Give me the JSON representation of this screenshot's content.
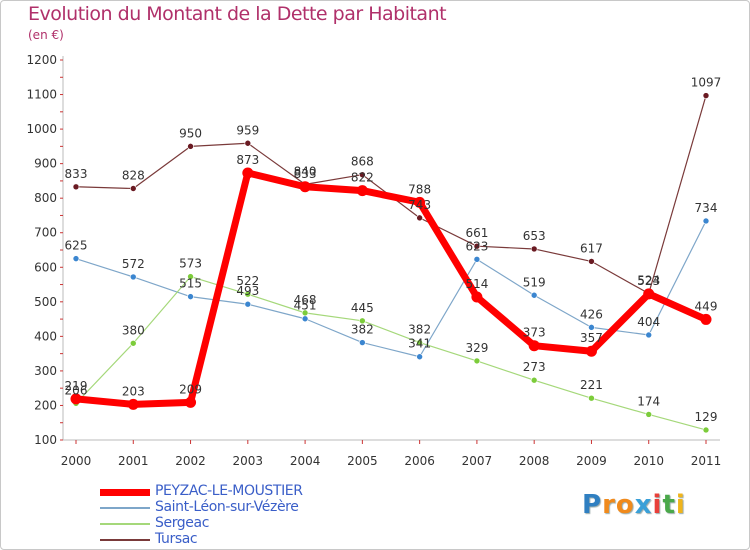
{
  "header": {
    "title": "Evolution du Montant de la Dette par Habitant",
    "unit": "(en €)"
  },
  "logo": {
    "text": "Proxiti",
    "letters": [
      "P",
      "r",
      "o",
      "x",
      "i",
      "t",
      "i"
    ],
    "colors": [
      "#2f7fc1",
      "#f08a1c",
      "#f08a1c",
      "#3aa0d8",
      "#e8403a",
      "#4aa84a",
      "#f0b41c"
    ]
  },
  "chart_data": {
    "type": "line",
    "title": "Evolution du Montant de la Dette par Habitant",
    "ylabel": "(en €)",
    "xlabel": "",
    "x": [
      "2000",
      "2001",
      "2002",
      "2003",
      "2004",
      "2005",
      "2006",
      "2007",
      "2008",
      "2009",
      "2010",
      "2011"
    ],
    "ylim": [
      100,
      1200
    ],
    "yticks": [
      100,
      200,
      300,
      400,
      500,
      600,
      700,
      800,
      900,
      1000,
      1100,
      1200
    ],
    "grid": false,
    "legend": "bottom-left",
    "series": [
      {
        "name": "PEYZAC-LE-MOUSTIER",
        "color": "#ff0000",
        "width": 7,
        "dot": "#ff0000",
        "values": [
          219,
          203,
          209,
          873,
          833,
          822,
          788,
          514,
          373,
          357,
          523,
          449
        ]
      },
      {
        "name": "Saint-Léon-sur-Vézère",
        "color": "#7ea6c9",
        "width": 1.2,
        "dot": "#3b86d0",
        "values": [
          625,
          572,
          515,
          493,
          451,
          382,
          341,
          623,
          519,
          426,
          404,
          734
        ]
      },
      {
        "name": "Sergeac",
        "color": "#a5d87a",
        "width": 1.2,
        "dot": "#7ccc3a",
        "values": [
          206,
          380,
          573,
          522,
          468,
          445,
          382,
          329,
          273,
          221,
          174,
          129
        ]
      },
      {
        "name": "Tursac",
        "color": "#7a3a3a",
        "width": 1.2,
        "dot": "#6a1a22",
        "values": [
          833,
          828,
          950,
          959,
          840,
          868,
          743,
          661,
          653,
          617,
          524,
          1097
        ]
      }
    ]
  }
}
